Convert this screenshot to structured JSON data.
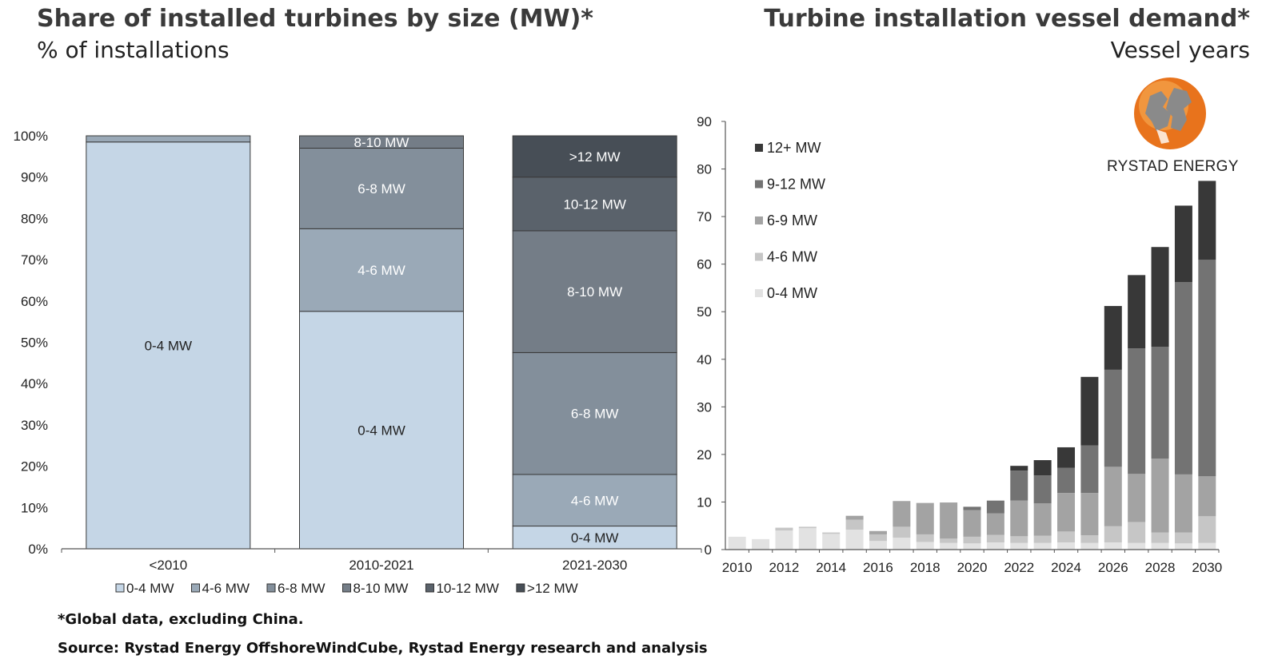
{
  "left_panel": {
    "title": "Share of installed turbines by size (MW)*",
    "subtitle": "% of installations"
  },
  "right_panel": {
    "title": "Turbine installation vessel demand*",
    "subtitle": "Vessel years"
  },
  "logo": {
    "name": "RYSTAD ENERGY",
    "colors": [
      "#e8731c",
      "#f4a24a",
      "#8a8a8a"
    ]
  },
  "footnotes": {
    "note": "*Global data, excluding  China.",
    "source": "Source: Rystad Energy OffshoreWindCube, Rystad Energy research and analysis"
  },
  "chart_data": [
    {
      "type": "bar",
      "stacked": true,
      "title": "Share of installed turbines by size (MW)*",
      "ylabel": "% of installations",
      "ylim": [
        0,
        100
      ],
      "y_ticks": [
        "0%",
        "10%",
        "20%",
        "30%",
        "40%",
        "50%",
        "60%",
        "70%",
        "80%",
        "90%",
        "100%"
      ],
      "categories": [
        "<2010",
        "2010-2021",
        "2021-2030"
      ],
      "series": [
        {
          "name": "0-4 MW",
          "color": "#c5d6e6",
          "values": [
            98.5,
            57.5,
            5.5
          ],
          "labels": [
            "0-4 MW",
            "0-4 MW",
            "0-4 MW"
          ],
          "label_colors": [
            "#222222",
            "#222222",
            "#222222"
          ]
        },
        {
          "name": "4-6 MW",
          "color": "#9aa9b7",
          "values": [
            1.5,
            20.0,
            12.5
          ],
          "labels": [
            "",
            "4-6 MW",
            "4-6 MW"
          ],
          "label_colors": [
            "#ffffff",
            "#ffffff",
            "#ffffff"
          ]
        },
        {
          "name": "6-8 MW",
          "color": "#838f9b",
          "values": [
            0,
            19.5,
            29.5
          ],
          "labels": [
            "",
            "6-8 MW",
            "6-8 MW"
          ],
          "label_colors": [
            "#ffffff",
            "#ffffff",
            "#ffffff"
          ]
        },
        {
          "name": "8-10 MW",
          "color": "#747d87",
          "values": [
            0,
            3.0,
            29.5
          ],
          "labels": [
            "",
            "8-10 MW",
            "8-10 MW"
          ],
          "label_colors": [
            "#ffffff",
            "#ffffff",
            "#ffffff"
          ]
        },
        {
          "name": "10-12 MW",
          "color": "#5a626b",
          "values": [
            0,
            0,
            13.0
          ],
          "labels": [
            "",
            "",
            "10-12 MW"
          ],
          "label_colors": [
            "#ffffff",
            "#ffffff",
            "#ffffff"
          ]
        },
        {
          "name": ">12 MW",
          "color": "#474e56",
          "values": [
            0,
            0,
            10.0
          ],
          "labels": [
            "",
            "",
            ">12 MW"
          ],
          "label_colors": [
            "#ffffff",
            "#ffffff",
            "#ffffff"
          ]
        }
      ],
      "legend_position": "bottom"
    },
    {
      "type": "bar",
      "stacked": true,
      "title": "Turbine installation vessel demand*",
      "ylabel": "Vessel years",
      "ylim": [
        0,
        90
      ],
      "y_ticks": [
        0,
        10,
        20,
        30,
        40,
        50,
        60,
        70,
        80,
        90
      ],
      "x": [
        2010,
        2011,
        2012,
        2013,
        2014,
        2015,
        2016,
        2017,
        2018,
        2019,
        2020,
        2021,
        2022,
        2023,
        2024,
        2025,
        2026,
        2027,
        2028,
        2029,
        2030
      ],
      "x_tick_labels": [
        "2010",
        "2012",
        "2014",
        "2016",
        "2018",
        "2020",
        "2022",
        "2024",
        "2026",
        "2028",
        "2030"
      ],
      "series": [
        {
          "name": "0-4 MW",
          "color": "#e2e2e2",
          "values": [
            2.7,
            2.2,
            4.0,
            4.5,
            3.3,
            4.2,
            1.8,
            2.5,
            1.6,
            1.4,
            1.3,
            1.5,
            1.4,
            1.4,
            1.5,
            1.4,
            1.5,
            1.4,
            1.4,
            1.3,
            1.4
          ]
        },
        {
          "name": "4-6 MW",
          "color": "#c6c6c6",
          "values": [
            0,
            0,
            0.6,
            0.3,
            0.3,
            2.1,
            1.4,
            2.3,
            1.6,
            0.9,
            1.4,
            1.6,
            1.4,
            1.5,
            2.3,
            1.6,
            3.4,
            4.4,
            2.2,
            2.3,
            5.6
          ]
        },
        {
          "name": "6-9 MW",
          "color": "#a3a3a3",
          "values": [
            0,
            0,
            0,
            0,
            0,
            0.8,
            0.7,
            5.4,
            6.6,
            7.6,
            5.6,
            4.5,
            7.5,
            6.8,
            8.1,
            8.9,
            12.5,
            10.1,
            15.5,
            12.2,
            8.4
          ]
        },
        {
          "name": "9-12 MW",
          "color": "#737373",
          "values": [
            0,
            0,
            0,
            0,
            0,
            0,
            0,
            0,
            0,
            0,
            0.7,
            2.7,
            6.3,
            5.9,
            5.3,
            10.0,
            20.4,
            26.4,
            23.5,
            40.4,
            45.5
          ]
        },
        {
          "name": "12+ MW",
          "color": "#383838",
          "values": [
            0,
            0,
            0,
            0,
            0,
            0,
            0,
            0,
            0,
            0,
            0,
            0,
            1.0,
            3.2,
            4.3,
            14.4,
            13.4,
            15.4,
            21.0,
            16.1,
            16.6
          ]
        }
      ],
      "legend_order": [
        "12+ MW",
        "9-12 MW",
        "6-9 MW",
        "4-6 MW",
        "0-4 MW"
      ],
      "legend_position": "top-left"
    }
  ]
}
